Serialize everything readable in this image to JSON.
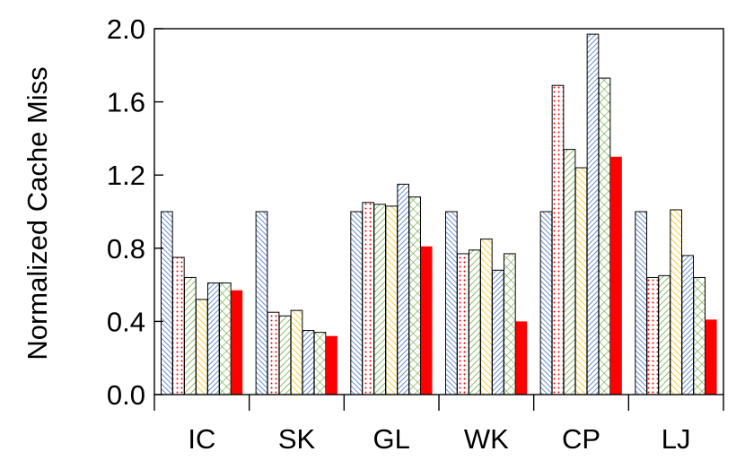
{
  "chart_data": {
    "type": "bar",
    "title": "",
    "xlabel": "",
    "ylabel": "Normalized Cache Miss",
    "ylim": [
      0,
      2.0
    ],
    "yticks": [
      "0.0",
      "0.4",
      "0.8",
      "1.2",
      "1.6",
      "2.0"
    ],
    "grid": false,
    "legend": "none",
    "categories": [
      "IC",
      "SK",
      "GL",
      "WK",
      "CP",
      "LJ"
    ],
    "series": [
      {
        "name": "series-1",
        "color": "#4472c4",
        "pattern": "dense-diag-right",
        "values": [
          1.0,
          1.0,
          1.0,
          1.0,
          1.0,
          1.0
        ]
      },
      {
        "name": "series-2",
        "color": "#ff0000",
        "pattern": "dots",
        "values": [
          0.75,
          0.45,
          1.05,
          0.77,
          1.69,
          0.64
        ]
      },
      {
        "name": "series-3",
        "color": "#70ad47",
        "pattern": "diag-left",
        "values": [
          0.64,
          0.43,
          1.04,
          0.79,
          1.34,
          0.65
        ]
      },
      {
        "name": "series-4",
        "color": "#ffc000",
        "pattern": "diag-right",
        "values": [
          0.52,
          0.46,
          1.03,
          0.85,
          1.24,
          1.01
        ]
      },
      {
        "name": "series-5",
        "color": "#4472c4",
        "pattern": "diag-left-dense",
        "values": [
          0.61,
          0.35,
          1.15,
          0.68,
          1.97,
          0.76
        ]
      },
      {
        "name": "series-6",
        "color": "#70ad47",
        "pattern": "crosshatch",
        "values": [
          0.61,
          0.34,
          1.08,
          0.77,
          1.73,
          0.64
        ]
      },
      {
        "name": "series-7",
        "color": "#ff0000",
        "pattern": "solid",
        "values": [
          0.57,
          0.32,
          0.81,
          0.4,
          1.3,
          0.41
        ]
      }
    ]
  }
}
